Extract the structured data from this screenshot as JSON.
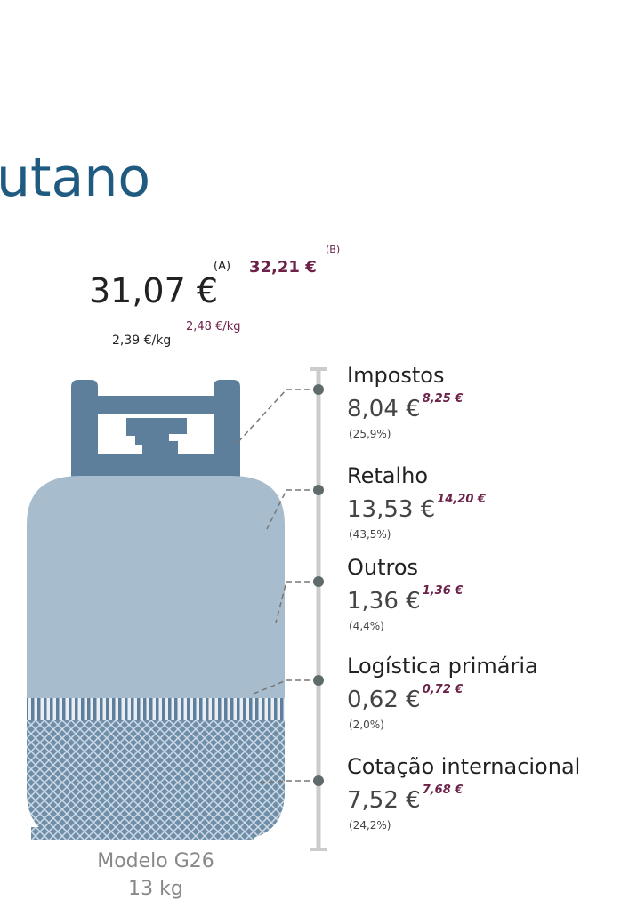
{
  "header": {
    "title": "utano"
  },
  "price": {
    "main": "31,07 €",
    "main_note": "(A)",
    "alt": "32,21 €",
    "alt_note": "(B)",
    "per_kg": "2,39 €/kg",
    "alt_per_kg": "2,48 €/kg"
  },
  "components": [
    {
      "name": "Impostos",
      "value": "8,04 €",
      "alt": "8,25 €",
      "share": "(25,9%)"
    },
    {
      "name": "Retalho",
      "value": "13,53 €",
      "alt": "14,20 €",
      "share": "(43,5%)"
    },
    {
      "name": "Outros",
      "value": "1,36 €",
      "alt": "1,36 €",
      "share": "(4,4%)"
    },
    {
      "name": "Logística primária",
      "value": "0,62 €",
      "alt": "0,72 €",
      "share": "(2,0%)"
    },
    {
      "name": "Cotação internacional",
      "value": "7,52 €",
      "alt": "7,68 €",
      "share": "(24,2%)"
    }
  ],
  "footer": {
    "model": "Modelo G26",
    "weight": "13 kg"
  }
}
